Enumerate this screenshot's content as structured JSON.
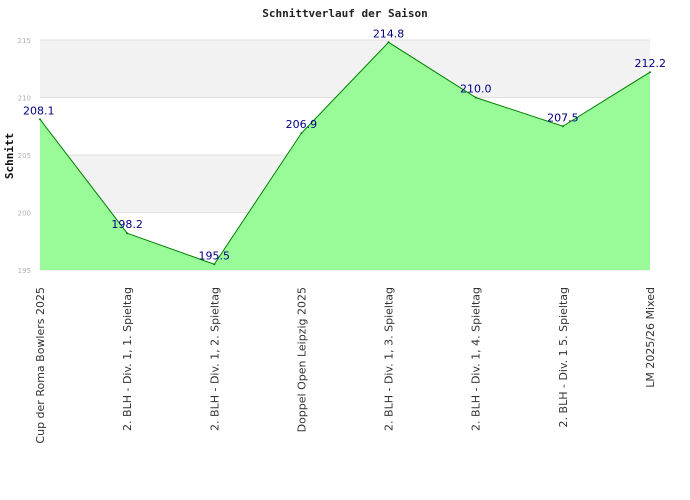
{
  "chart_data": {
    "type": "area",
    "title": "Schnittverlauf der Saison",
    "xlabel": "",
    "ylabel": "Schnitt",
    "ylim": [
      195,
      215
    ],
    "yticks": [
      195,
      200,
      205,
      210,
      215
    ],
    "grid": true,
    "categories": [
      "Cup der Roma Bowlers 2025",
      "2. BLH - Div. 1, 1. Spieltag",
      "2. BLH - Div. 1, 2. Spieltag",
      "Doppel Open Leipzig 2025",
      "2. BLH - Div. 1, 3. Spieltag",
      "2. BLH - Div. 1, 4. Spieltag",
      "2. BLH - Div. 1  5. Spieltag",
      "LM 2025/26 Mixed"
    ],
    "values": [
      208.1,
      198.2,
      195.5,
      206.9,
      214.8,
      210.0,
      207.5,
      212.2
    ],
    "value_labels": [
      "208.1",
      "198.2",
      "195.5",
      "206.9",
      "214.8",
      "210.0",
      "207.5",
      "212.2"
    ],
    "colors": {
      "fill": "#98fb98",
      "line": "#008000",
      "label": "#000080",
      "band": "#f2f2f2"
    }
  }
}
